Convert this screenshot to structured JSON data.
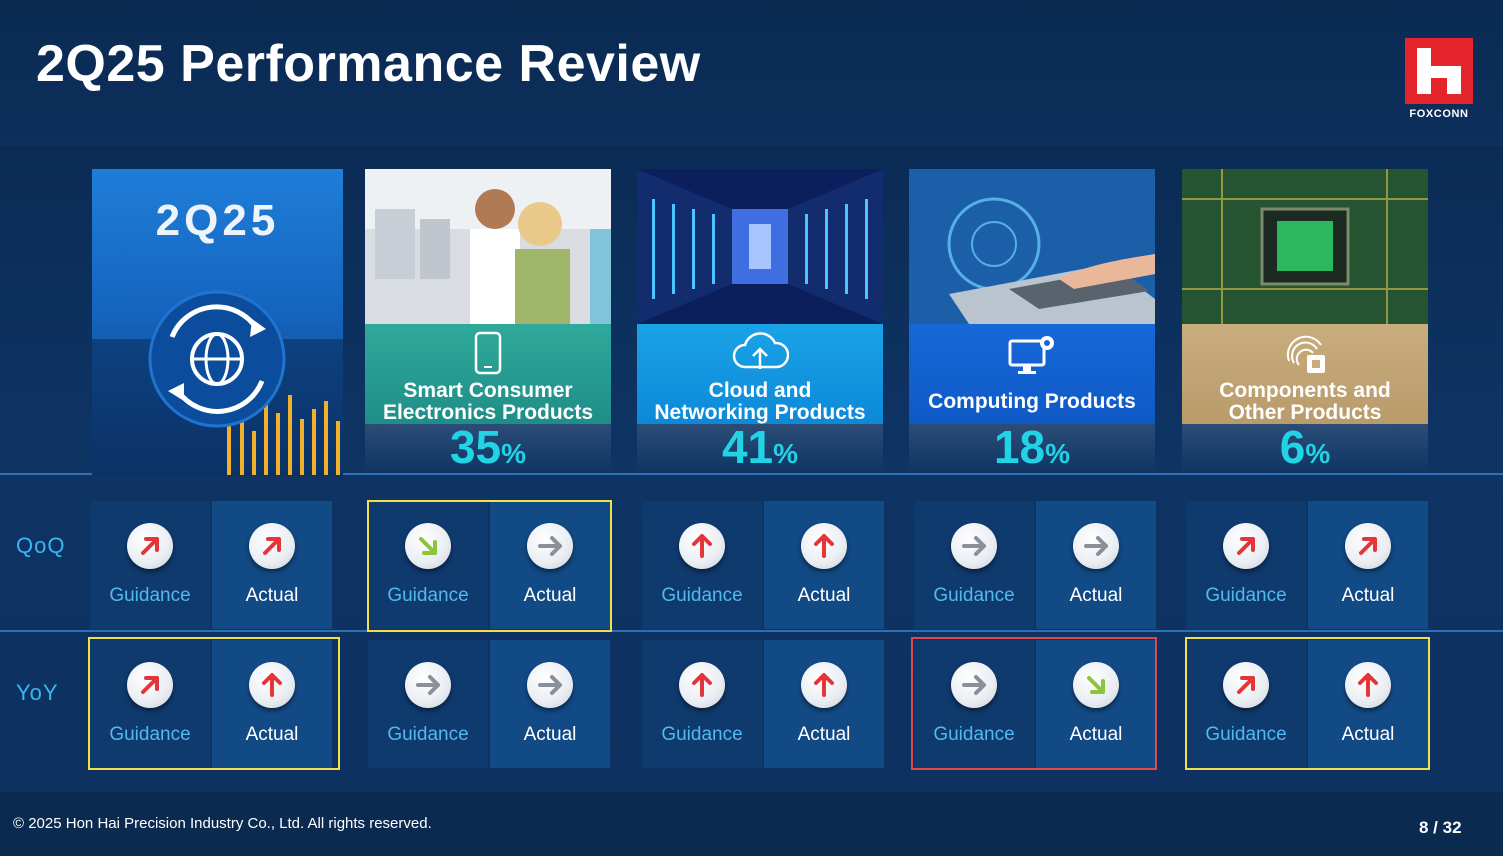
{
  "header": {
    "title": "2Q25 Performance Review",
    "logo_word": "FOXCONN"
  },
  "period_card": {
    "label": "2Q25"
  },
  "categories": [
    {
      "name_line1": "Smart Consumer",
      "name_line2": "Electronics Products",
      "pct": "35",
      "pct_sign": "%"
    },
    {
      "name_line1": "Cloud and",
      "name_line2": "Networking Products",
      "pct": "41",
      "pct_sign": "%"
    },
    {
      "name_line1": "Computing Products",
      "name_line2": "",
      "pct": "18",
      "pct_sign": "%"
    },
    {
      "name_line1": "Components and",
      "name_line2": "Other Products",
      "pct": "6",
      "pct_sign": "%"
    }
  ],
  "rows": {
    "qoq": "QoQ",
    "yoy": "YoY"
  },
  "cell_labels": {
    "guidance": "Guidance",
    "actual": "Actual"
  },
  "arrows": {
    "qoq": [
      [
        "up-right",
        "up-right"
      ],
      [
        "down-right",
        "right"
      ],
      [
        "up",
        "up"
      ],
      [
        "right",
        "right"
      ],
      [
        "up-right",
        "up-right"
      ]
    ],
    "yoy": [
      [
        "up-right",
        "up"
      ],
      [
        "right",
        "right"
      ],
      [
        "up",
        "up"
      ],
      [
        "right",
        "down-right"
      ],
      [
        "up-right",
        "up"
      ]
    ]
  },
  "colors": {
    "highlight_yellow": "#f2e04a",
    "highlight_red": "#e0484c",
    "percent": "#22d3e6",
    "row_label": "#38b6f0"
  },
  "footer": {
    "copyright": "© 2025  Hon Hai Precision Industry Co., Ltd. All rights reserved.",
    "page": "8 / 32"
  }
}
